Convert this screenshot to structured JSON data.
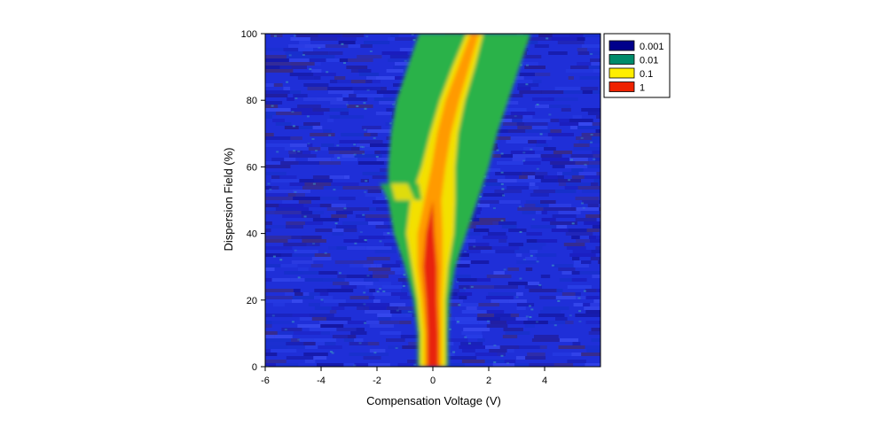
{
  "chart_data": {
    "type": "heatmap",
    "title": "",
    "xlabel": "Compensation Voltage (V)",
    "ylabel": "Dispersion Field (%)",
    "xlim": [
      -6,
      6
    ],
    "ylim": [
      0,
      100
    ],
    "x_ticks": [
      -6,
      -4,
      -2,
      0,
      2,
      4
    ],
    "y_ticks": [
      0,
      20,
      40,
      60,
      80,
      100
    ],
    "x_tick_labels": [
      "-6",
      "-4",
      "-2",
      "0",
      "2",
      "4"
    ],
    "y_tick_labels": [
      "0",
      "20",
      "40",
      "60",
      "80",
      "100"
    ],
    "grid": false,
    "legend_position": "top-right, outside plot",
    "legend": [
      {
        "label": "0.001",
        "color": "#00008b"
      },
      {
        "label": "0.01",
        "color": "#008b6b"
      },
      {
        "label": "0.1",
        "color": "#ffee00"
      },
      {
        "label": "1",
        "color": "#ee2200"
      }
    ],
    "background_color": "#1f2fd8",
    "ridges": [
      {
        "name": "main",
        "points": [
          {
            "y": 0,
            "cv": 0.0,
            "w_red": 0.2,
            "w_orange": 0.3,
            "w_yellow": 0.45,
            "w_green": 0.55
          },
          {
            "y": 10,
            "cv": 0.0,
            "w_red": 0.2,
            "w_orange": 0.3,
            "w_yellow": 0.45,
            "w_green": 0.55
          },
          {
            "y": 20,
            "cv": -0.05,
            "w_red": 0.2,
            "w_orange": 0.35,
            "w_yellow": 0.5,
            "w_green": 0.65
          },
          {
            "y": 30,
            "cv": -0.1,
            "w_red": 0.25,
            "w_orange": 0.45,
            "w_yellow": 0.65,
            "w_green": 0.9
          },
          {
            "y": 40,
            "cv": -0.1,
            "w_red": 0.15,
            "w_orange": 0.45,
            "w_yellow": 0.85,
            "w_green": 1.3
          },
          {
            "y": 50,
            "cv": 0.0,
            "w_red": 0.0,
            "w_orange": 0.3,
            "w_yellow": 0.8,
            "w_green": 1.6
          },
          {
            "y": 60,
            "cv": 0.2,
            "w_red": 0.0,
            "w_orange": 0.25,
            "w_yellow": 0.6,
            "w_green": 1.8
          },
          {
            "y": 70,
            "cv": 0.4,
            "w_red": 0.0,
            "w_orange": 0.25,
            "w_yellow": 0.5,
            "w_green": 1.9
          },
          {
            "y": 80,
            "cv": 0.7,
            "w_red": 0.0,
            "w_orange": 0.25,
            "w_yellow": 0.45,
            "w_green": 2.0
          },
          {
            "y": 90,
            "cv": 1.1,
            "w_red": 0.0,
            "w_orange": 0.2,
            "w_yellow": 0.4,
            "w_green": 2.0
          },
          {
            "y": 100,
            "cv": 1.5,
            "w_red": 0.0,
            "w_orange": 0.15,
            "w_yellow": 0.3,
            "w_green": 2.0
          }
        ]
      },
      {
        "name": "side",
        "points": [
          {
            "y": 50,
            "cv": -1.0,
            "w_yellow": 0.35,
            "w_green": 0.6
          },
          {
            "y": 55,
            "cv": -1.2,
            "w_yellow": 0.3,
            "w_green": 0.7
          }
        ]
      }
    ]
  }
}
